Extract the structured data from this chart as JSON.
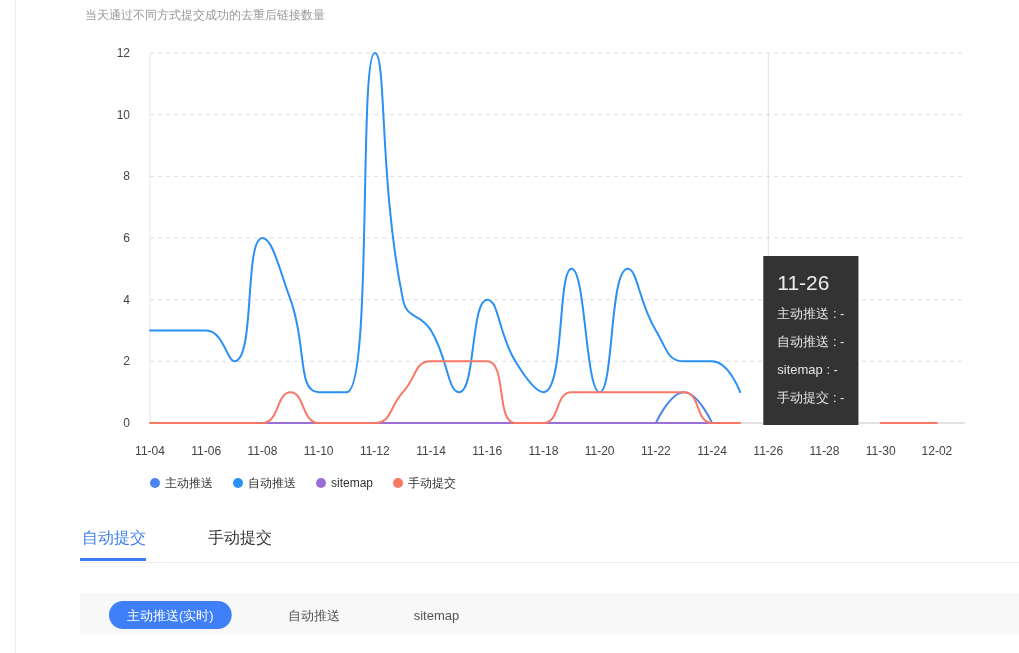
{
  "chart_data": {
    "type": "line",
    "title": "当天通过不同方式提交成功的去重后链接数量",
    "categories": [
      "11-04",
      null,
      "11-06",
      null,
      "11-08",
      null,
      "11-10",
      null,
      "11-12",
      null,
      "11-14",
      null,
      "11-16",
      null,
      "11-18",
      null,
      "11-20",
      null,
      "11-22",
      null,
      "11-24",
      null,
      "11-26",
      null,
      "11-28",
      null,
      "11-30",
      null,
      "12-02",
      null
    ],
    "series": [
      {
        "name": "主动推送",
        "color": "#4a86f0",
        "values": [
          null,
          null,
          null,
          null,
          null,
          null,
          null,
          null,
          null,
          null,
          null,
          null,
          null,
          null,
          null,
          null,
          null,
          null,
          0,
          1,
          0,
          null,
          null,
          null,
          null,
          null,
          null,
          null,
          null,
          null
        ]
      },
      {
        "name": "自动推送",
        "color": "#2a90f5",
        "values": [
          3,
          3,
          3,
          2,
          6,
          4,
          1,
          1,
          12,
          4,
          3,
          1,
          4,
          2,
          1,
          5,
          1,
          5,
          3,
          2,
          2,
          1,
          null,
          null,
          null,
          null,
          null,
          null,
          null,
          null
        ]
      },
      {
        "name": "sitemap",
        "color": "#9a70d8",
        "values": [
          null,
          null,
          null,
          null,
          0,
          0,
          0,
          0,
          0,
          0,
          0,
          0,
          0,
          0,
          0,
          0,
          0,
          0,
          0,
          0,
          0,
          null,
          null,
          null,
          null,
          null,
          null,
          null,
          null,
          null
        ]
      },
      {
        "name": "手动提交",
        "color": "#fa7765",
        "values": [
          0,
          0,
          0,
          0,
          0,
          1,
          0,
          0,
          0,
          1,
          2,
          2,
          2,
          0,
          0,
          1,
          1,
          1,
          1,
          1,
          0,
          0,
          null,
          null,
          null,
          null,
          0,
          0,
          0,
          null
        ]
      }
    ],
    "ylim": [
      0,
      12
    ],
    "yticks": [
      0,
      2,
      4,
      6,
      8,
      10,
      12
    ],
    "grid": "y",
    "legend": "bottom left",
    "ref_lines": [
      {
        "axis": "x",
        "value": "11-26",
        "color": "#e0e0e0"
      }
    ],
    "annotations": [
      "11-26",
      "主动推送 : -",
      "自动推送 : -",
      "sitemap : -",
      "手动提交 : -",
      "自动提交",
      "手动提交",
      "主动推送(实时)",
      "自动推送",
      "sitemap"
    ]
  }
}
